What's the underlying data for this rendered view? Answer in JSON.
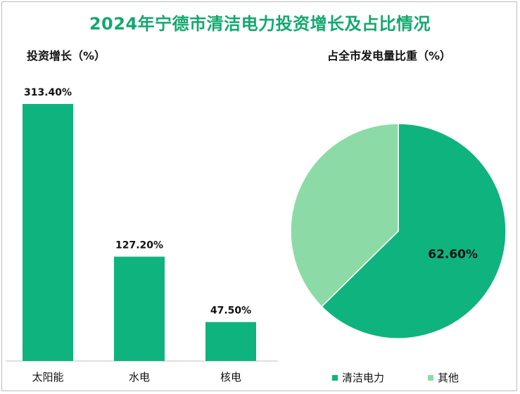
{
  "title": "2024年宁德市清洁电力投资增长及占比情况",
  "colors": {
    "primary": "#0fb37e",
    "secondary": "#8cdba6",
    "title": "#13a86f"
  },
  "chart_data": [
    {
      "type": "bar",
      "title": "投资增长（%）",
      "categories": [
        "太阳能",
        "水电",
        "核电"
      ],
      "values": [
        313.4,
        127.2,
        47.5
      ],
      "value_labels": [
        "313.40%",
        "127.20%",
        "47.50%"
      ],
      "ylim": [
        0,
        330
      ],
      "grid": false
    },
    {
      "type": "pie",
      "title": "占全市发电量比重（%）",
      "labels": [
        "清洁电力",
        "其他"
      ],
      "values": [
        62.6,
        37.4
      ],
      "value_labels": [
        "62.60%",
        ""
      ],
      "legend": "bottom"
    }
  ]
}
